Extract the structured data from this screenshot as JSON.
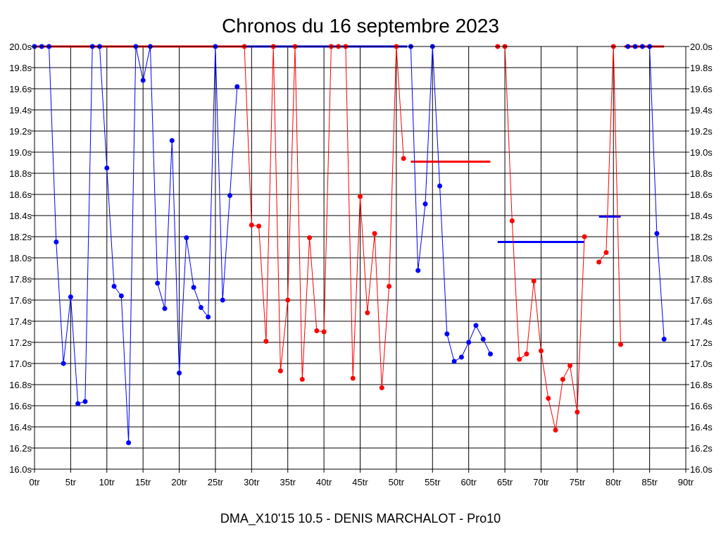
{
  "chart_data": {
    "type": "line",
    "title": "Chronos du 16 septembre 2023",
    "subtitle": "DMA_X10'15 10.5 - DENIS MARCHALOT - Pro10",
    "xlim": [
      0,
      90
    ],
    "ylim": [
      16.0,
      20.0
    ],
    "x_ticks": [
      {
        "v": 0,
        "label": "0tr"
      },
      {
        "v": 5,
        "label": "5tr"
      },
      {
        "v": 10,
        "label": "10tr"
      },
      {
        "v": 15,
        "label": "15tr"
      },
      {
        "v": 20,
        "label": "20tr"
      },
      {
        "v": 25,
        "label": "25tr"
      },
      {
        "v": 30,
        "label": "30tr"
      },
      {
        "v": 35,
        "label": "35tr"
      },
      {
        "v": 40,
        "label": "40tr"
      },
      {
        "v": 45,
        "label": "45tr"
      },
      {
        "v": 50,
        "label": "50tr"
      },
      {
        "v": 55,
        "label": "55tr"
      },
      {
        "v": 60,
        "label": "60tr"
      },
      {
        "v": 65,
        "label": "65tr"
      },
      {
        "v": 70,
        "label": "70tr"
      },
      {
        "v": 75,
        "label": "75tr"
      },
      {
        "v": 80,
        "label": "80tr"
      },
      {
        "v": 85,
        "label": "85tr"
      },
      {
        "v": 90,
        "label": "90tr"
      }
    ],
    "y_ticks": [
      {
        "v": 16.0,
        "label": "16.0s"
      },
      {
        "v": 16.2,
        "label": "16.2s"
      },
      {
        "v": 16.4,
        "label": "16.4s"
      },
      {
        "v": 16.6,
        "label": "16.6s"
      },
      {
        "v": 16.8,
        "label": "16.8s"
      },
      {
        "v": 17.0,
        "label": "17.0s"
      },
      {
        "v": 17.2,
        "label": "17.2s"
      },
      {
        "v": 17.4,
        "label": "17.4s"
      },
      {
        "v": 17.6,
        "label": "17.6s"
      },
      {
        "v": 17.8,
        "label": "17.8s"
      },
      {
        "v": 18.0,
        "label": "18.0s"
      },
      {
        "v": 18.2,
        "label": "18.2s"
      },
      {
        "v": 18.4,
        "label": "18.4s"
      },
      {
        "v": 18.6,
        "label": "18.6s"
      },
      {
        "v": 18.8,
        "label": "18.8s"
      },
      {
        "v": 19.0,
        "label": "19.0s"
      },
      {
        "v": 19.2,
        "label": "19.2s"
      },
      {
        "v": 19.4,
        "label": "19.4s"
      },
      {
        "v": 19.6,
        "label": "19.6s"
      },
      {
        "v": 19.8,
        "label": "19.8s"
      },
      {
        "v": 20.0,
        "label": "20.0s"
      }
    ],
    "grid": true,
    "colors": {
      "blue": "#0000ff",
      "red": "#ff0000",
      "axis": "#000000",
      "grid": "#000000"
    },
    "series": [
      {
        "color": "blue",
        "points": [
          [
            0,
            20.0
          ],
          [
            1,
            20.0
          ],
          [
            2,
            20.0
          ],
          [
            3,
            18.15
          ],
          [
            4,
            17.0
          ],
          [
            5,
            17.63
          ],
          [
            6,
            16.62
          ],
          [
            7,
            16.64
          ],
          [
            8,
            20.0
          ],
          [
            9,
            20.0
          ],
          [
            10,
            18.85
          ],
          [
            11,
            17.73
          ],
          [
            12,
            17.64
          ],
          [
            13,
            16.25
          ],
          [
            14,
            20.0
          ],
          [
            15,
            19.68
          ],
          [
            16,
            20.0
          ],
          [
            17,
            17.76
          ],
          [
            18,
            17.52
          ],
          [
            19,
            19.11
          ],
          [
            20,
            16.91
          ],
          [
            21,
            18.19
          ],
          [
            22,
            17.72
          ],
          [
            23,
            17.53
          ],
          [
            24,
            17.44
          ],
          [
            25,
            20.0
          ],
          [
            26,
            17.6
          ],
          [
            27,
            18.59
          ],
          [
            28,
            19.62
          ]
        ]
      },
      {
        "color": "red",
        "points": [
          [
            29,
            20.0
          ],
          [
            30,
            18.31
          ],
          [
            31,
            18.3
          ],
          [
            32,
            17.21
          ],
          [
            33,
            20.0
          ],
          [
            34,
            16.93
          ],
          [
            35,
            17.6
          ],
          [
            36,
            20.0
          ],
          [
            37,
            16.85
          ],
          [
            38,
            18.19
          ],
          [
            39,
            17.31
          ],
          [
            40,
            17.3
          ],
          [
            41,
            20.0
          ],
          [
            42,
            20.0
          ],
          [
            43,
            20.0
          ],
          [
            44,
            16.86
          ],
          [
            45,
            18.58
          ],
          [
            46,
            17.48
          ],
          [
            47,
            18.23
          ],
          [
            48,
            16.77
          ],
          [
            49,
            17.73
          ],
          [
            50,
            20.0
          ],
          [
            51,
            18.94
          ]
        ]
      },
      {
        "color": "blue",
        "points": [
          [
            52,
            20.0
          ],
          [
            53,
            17.88
          ],
          [
            54,
            18.51
          ],
          [
            55,
            20.0
          ],
          [
            56,
            18.68
          ],
          [
            57,
            17.28
          ],
          [
            58,
            17.02
          ],
          [
            59,
            17.06
          ],
          [
            60,
            17.2
          ],
          [
            61,
            17.36
          ],
          [
            62,
            17.23
          ],
          [
            63,
            17.09
          ]
        ]
      },
      {
        "color": "red",
        "points": [
          [
            64,
            20.0
          ],
          [
            65,
            20.0
          ],
          [
            66,
            18.35
          ],
          [
            67,
            17.04
          ],
          [
            68,
            17.09
          ],
          [
            69,
            17.78
          ],
          [
            70,
            17.12
          ],
          [
            71,
            16.67
          ],
          [
            72,
            16.37
          ],
          [
            73,
            16.85
          ],
          [
            74,
            16.98
          ],
          [
            75,
            16.54
          ],
          [
            76,
            18.2
          ]
        ]
      },
      {
        "color": "red",
        "points": [
          [
            78,
            17.96
          ],
          [
            79,
            18.05
          ],
          [
            80,
            20.0
          ],
          [
            81,
            17.18
          ]
        ]
      },
      {
        "color": "blue",
        "points": [
          [
            82,
            20.0
          ],
          [
            83,
            20.0
          ],
          [
            84,
            20.0
          ],
          [
            85,
            20.0
          ],
          [
            86,
            18.23
          ],
          [
            87,
            17.23
          ]
        ]
      }
    ],
    "average_lines": [
      {
        "color": "red",
        "x": [
          0,
          29
        ],
        "y": 20.0
      },
      {
        "color": "blue",
        "x": [
          29,
          51.5
        ],
        "y": 20.0
      },
      {
        "color": "red",
        "x": [
          52,
          63
        ],
        "y": 18.91
      },
      {
        "color": "blue",
        "x": [
          64,
          76
        ],
        "y": 18.15
      },
      {
        "color": "blue",
        "x": [
          78,
          81
        ],
        "y": 18.39
      },
      {
        "color": "red",
        "x": [
          81.5,
          87
        ],
        "y": 20.0
      }
    ]
  }
}
